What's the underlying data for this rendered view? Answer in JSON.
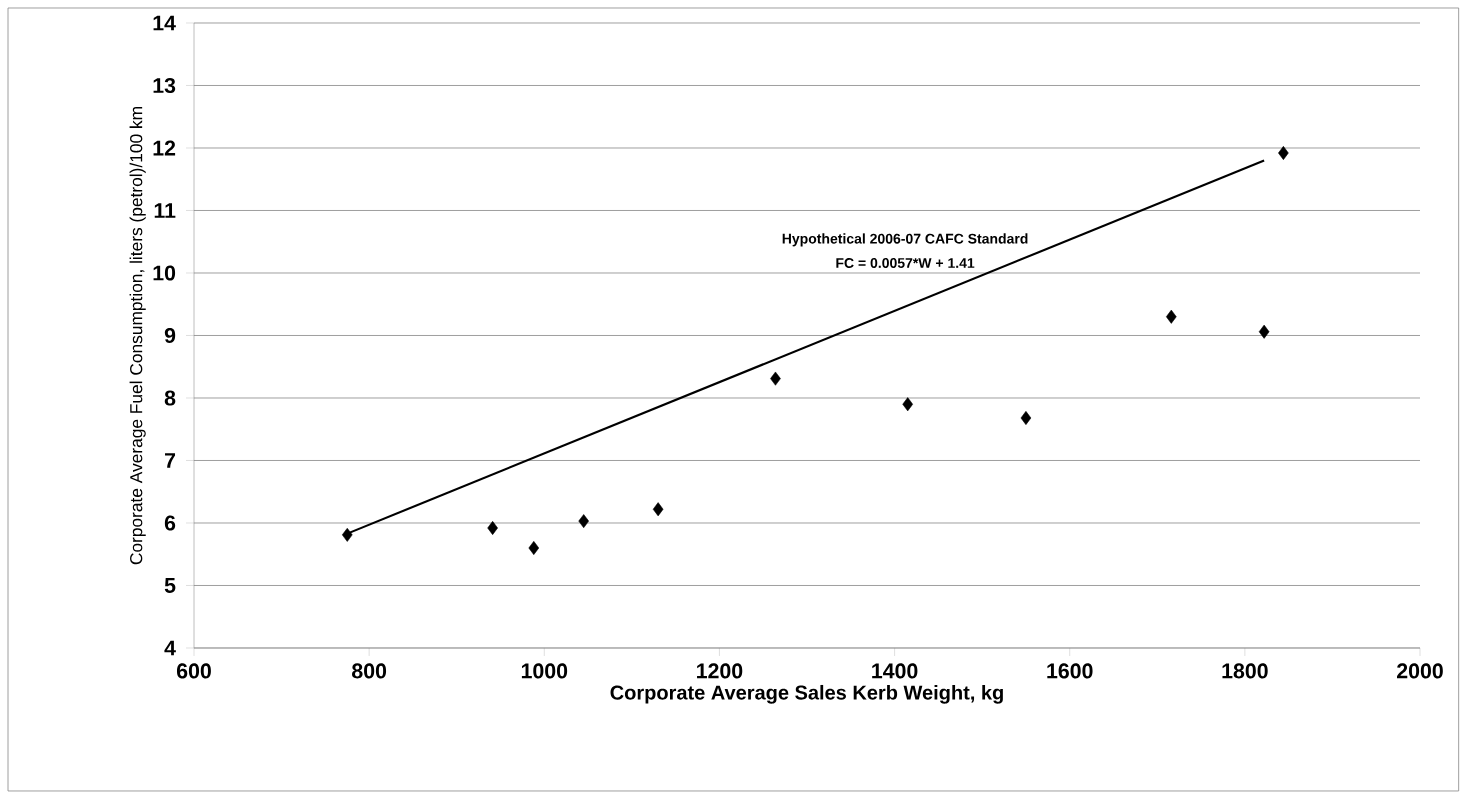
{
  "chart_data": {
    "type": "scatter",
    "xlabel": "Corporate Average Sales Kerb Weight, kg",
    "ylabel": "Corporate Average Fuel Consumption,  liters (petrol)/100 km",
    "xlim": [
      600,
      2000
    ],
    "xticks": [
      600,
      800,
      1000,
      1200,
      1400,
      1600,
      1800,
      2000
    ],
    "ylim": [
      4,
      14
    ],
    "yticks": [
      4,
      5,
      6,
      7,
      8,
      9,
      10,
      11,
      12,
      13,
      14
    ],
    "grid": "y",
    "marker": "diamond",
    "series": [
      {
        "color": "#000000",
        "x": [
          775,
          941,
          988,
          1045,
          1130,
          1264,
          1415,
          1550,
          1716,
          1822,
          1844
        ],
        "values": [
          5.81,
          5.92,
          5.6,
          6.03,
          6.22,
          8.31,
          7.9,
          7.68,
          9.3,
          9.06,
          11.92
        ]
      },
      {
        "type": "line",
        "color": "#000000",
        "marker": "none",
        "line_style": "solid",
        "x": [
          775,
          1822
        ],
        "values": [
          5.83,
          11.8
        ]
      }
    ],
    "annotations": [
      "Hypothetical 2006-07 CAFC Standard",
      "FC = 0.0057*W + 1.41"
    ]
  }
}
